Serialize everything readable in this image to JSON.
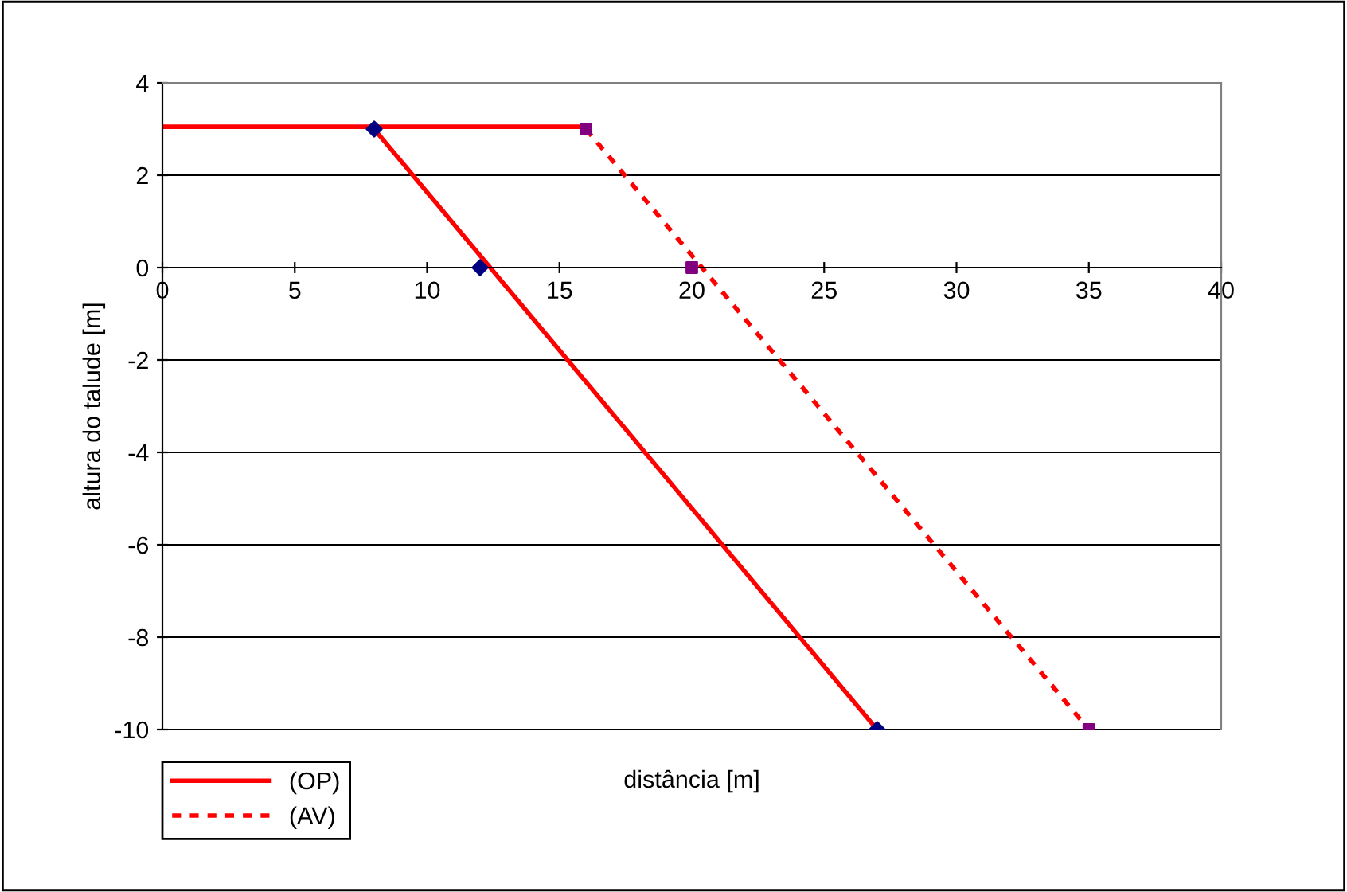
{
  "chart_data": {
    "type": "line",
    "xlabel": "distância [m]",
    "ylabel": "altura do talude [m]",
    "xlim": [
      0,
      40
    ],
    "xticks": [
      0,
      5,
      10,
      15,
      20,
      25,
      30,
      35,
      40
    ],
    "ylim": [
      -10,
      4
    ],
    "yticks": [
      -10,
      -8,
      -6,
      -4,
      -2,
      0,
      2,
      4
    ],
    "grid": "y",
    "legend": "bottom left",
    "series": [
      {
        "name": "(OP)",
        "color": "#ff0000",
        "line_style": "solid",
        "marker": "none",
        "x": [
          8,
          27
        ],
        "values": [
          3,
          -10
        ]
      },
      {
        "name": "(AV)",
        "color": "#ff0000",
        "line_style": "dotted",
        "marker": "none",
        "x": [
          16,
          35
        ],
        "values": [
          3,
          -10
        ]
      },
      {
        "color": "#ff0000",
        "line_style": "solid",
        "marker": "none",
        "x": [
          0,
          16
        ],
        "values": [
          3.05,
          3.05
        ]
      },
      {
        "type": "scatter",
        "color": "#000080",
        "marker": "diamond",
        "x": [
          8,
          12,
          27
        ],
        "values": [
          3,
          0,
          -10
        ]
      },
      {
        "type": "scatter",
        "color": "#800080",
        "marker": "square",
        "x": [
          16,
          20,
          35
        ],
        "values": [
          3,
          0,
          -10
        ]
      }
    ]
  }
}
